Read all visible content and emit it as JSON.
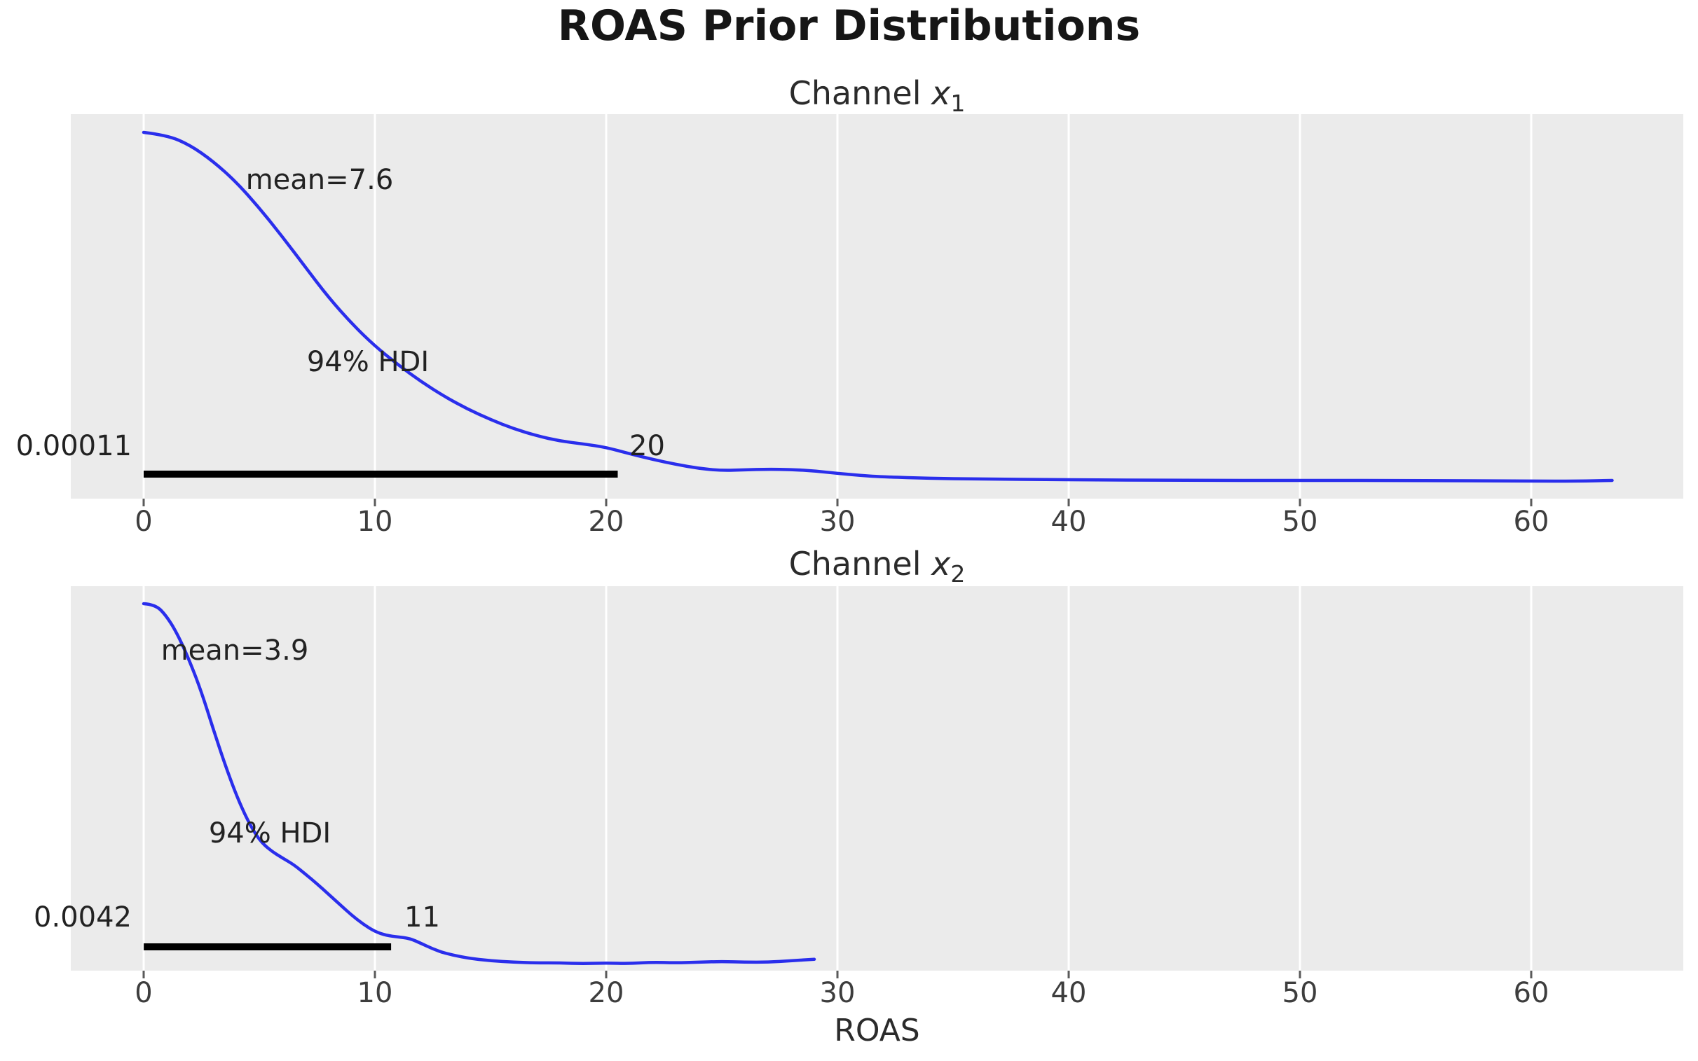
{
  "figure": {
    "title": "ROAS Prior Distributions",
    "xlabel": "ROAS"
  },
  "axis": {
    "tick_labels": [
      "0",
      "10",
      "20",
      "30",
      "40",
      "50",
      "60"
    ],
    "tick_values": [
      0,
      10,
      20,
      30,
      40,
      50,
      60
    ],
    "x_range": [
      -3.2,
      66.6
    ],
    "grid": "vertical-white-on-gray"
  },
  "colors": {
    "curve": "#2a2eec",
    "plot_bg": "#ebebeb",
    "gridline": "#ffffff",
    "hdi_bar": "#000000",
    "tick_mark": "#5a5a5a",
    "text": "#262626"
  },
  "chart_data": [
    {
      "type": "line",
      "subplot": "top",
      "title": {
        "prefix": "Channel ",
        "variable": "x",
        "subscript": "1"
      },
      "mean": 7.6,
      "mean_label": "mean=7.6",
      "hdi_label": "94% HDI",
      "hdi_interval": [
        0.00011,
        20.5
      ],
      "hdi_lo_label": "0.00011",
      "hdi_hi_label": "20",
      "curve_x_end": 63.5,
      "curve": [
        [
          0,
          1.0
        ],
        [
          1,
          0.992
        ],
        [
          2,
          0.964
        ],
        [
          3,
          0.918
        ],
        [
          4,
          0.859
        ],
        [
          5,
          0.785
        ],
        [
          6,
          0.703
        ],
        [
          7,
          0.616
        ],
        [
          8,
          0.53
        ],
        [
          9,
          0.456
        ],
        [
          10,
          0.392
        ],
        [
          11,
          0.339
        ],
        [
          12,
          0.291
        ],
        [
          13,
          0.249
        ],
        [
          14,
          0.213
        ],
        [
          15,
          0.183
        ],
        [
          16,
          0.157
        ],
        [
          17,
          0.137
        ],
        [
          18,
          0.122
        ],
        [
          19,
          0.114
        ],
        [
          20,
          0.104
        ],
        [
          21,
          0.086
        ],
        [
          22,
          0.07
        ],
        [
          23,
          0.056
        ],
        [
          24,
          0.044
        ],
        [
          25,
          0.038
        ],
        [
          26,
          0.04
        ],
        [
          27,
          0.042
        ],
        [
          28,
          0.041
        ],
        [
          29,
          0.037
        ],
        [
          30,
          0.03
        ],
        [
          31,
          0.024
        ],
        [
          32,
          0.02
        ],
        [
          34,
          0.016
        ],
        [
          36,
          0.014
        ],
        [
          40,
          0.012
        ],
        [
          45,
          0.01
        ],
        [
          50,
          0.01
        ],
        [
          55,
          0.01
        ],
        [
          60,
          0.008
        ],
        [
          62,
          0.008
        ],
        [
          63.5,
          0.01
        ]
      ]
    },
    {
      "type": "line",
      "subplot": "bottom",
      "title": {
        "prefix": "Channel ",
        "variable": "x",
        "subscript": "2"
      },
      "mean": 3.9,
      "mean_label": "mean=3.9",
      "hdi_label": "94% HDI",
      "hdi_interval": [
        0.0042,
        10.7
      ],
      "hdi_lo_label": "0.0042",
      "hdi_hi_label": "11",
      "curve_x_end": 29,
      "curve": [
        [
          0,
          1.0
        ],
        [
          0.5,
          0.998
        ],
        [
          1,
          0.965
        ],
        [
          1.5,
          0.911
        ],
        [
          2,
          0.839
        ],
        [
          2.5,
          0.755
        ],
        [
          3,
          0.654
        ],
        [
          3.5,
          0.557
        ],
        [
          4,
          0.47
        ],
        [
          4.5,
          0.398
        ],
        [
          5,
          0.344
        ],
        [
          5.5,
          0.315
        ],
        [
          6,
          0.295
        ],
        [
          6.5,
          0.276
        ],
        [
          7,
          0.25
        ],
        [
          7.5,
          0.223
        ],
        [
          8,
          0.194
        ],
        [
          8.5,
          0.165
        ],
        [
          9,
          0.136
        ],
        [
          9.5,
          0.111
        ],
        [
          10,
          0.091
        ],
        [
          10.5,
          0.08
        ],
        [
          11,
          0.076
        ],
        [
          11.5,
          0.072
        ],
        [
          12,
          0.058
        ],
        [
          12.5,
          0.043
        ],
        [
          13,
          0.031
        ],
        [
          14,
          0.017
        ],
        [
          15,
          0.01
        ],
        [
          16,
          0.006
        ],
        [
          17,
          0.004
        ],
        [
          18,
          0.004
        ],
        [
          19,
          0.002
        ],
        [
          20,
          0.004
        ],
        [
          21,
          0.002
        ],
        [
          22,
          0.006
        ],
        [
          23,
          0.004
        ],
        [
          24,
          0.006
        ],
        [
          25,
          0.008
        ],
        [
          26,
          0.006
        ],
        [
          27,
          0.006
        ],
        [
          28,
          0.01
        ],
        [
          29,
          0.014
        ]
      ]
    }
  ]
}
